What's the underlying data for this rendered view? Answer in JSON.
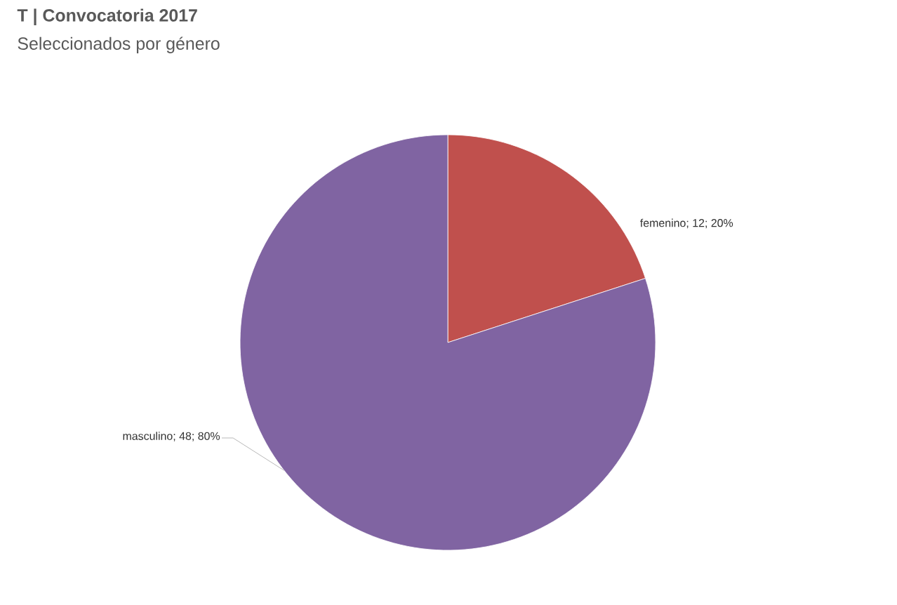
{
  "chart_data": {
    "type": "pie",
    "title": "T | Convocatoria 2017",
    "subtitle": "Seleccionados por género",
    "categories": [
      "femenino",
      "masculino"
    ],
    "values": [
      12,
      48
    ],
    "colors": [
      "#c0504d",
      "#8064a2"
    ],
    "value_labels": [
      "; 12; 20%",
      "; 48; 80%"
    ]
  }
}
